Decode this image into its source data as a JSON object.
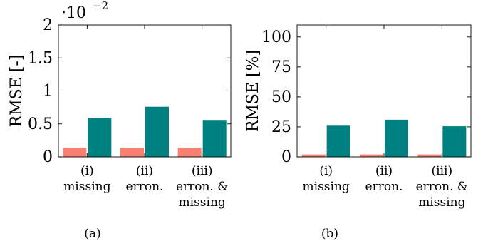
{
  "chart_data": [
    {
      "type": "bar",
      "panel_label": "(a)",
      "ylabel": "RMSE [-]",
      "exponent_label": "·10",
      "exponent_power": "−2",
      "ylim": [
        0,
        2
      ],
      "yticks": [
        0,
        0.5,
        1,
        1.5,
        2
      ],
      "ytick_labels": [
        "0",
        "0.5",
        "1",
        "1.5",
        "2"
      ],
      "categories": [
        [
          "(i)",
          "missing"
        ],
        [
          "(ii)",
          "erron."
        ],
        [
          "(iii)",
          "erron. &",
          "missing"
        ]
      ],
      "series": [
        {
          "color": "#fa8072",
          "values": [
            0.14,
            0.14,
            0.14
          ]
        },
        {
          "color": "#008080",
          "values": [
            0.59,
            0.76,
            0.56
          ]
        }
      ],
      "grid": false,
      "legend": "none"
    },
    {
      "type": "bar",
      "panel_label": "(b)",
      "ylabel": "RMSE [%]",
      "ylim": [
        0,
        110
      ],
      "yticks": [
        0,
        25,
        50,
        75,
        100
      ],
      "ytick_labels": [
        "0",
        "25",
        "50",
        "75",
        "100"
      ],
      "categories": [
        [
          "(i)",
          "missing"
        ],
        [
          "(ii)",
          "erron."
        ],
        [
          "(iii)",
          "erron. &",
          "missing"
        ]
      ],
      "series": [
        {
          "color": "#fa8072",
          "values": [
            2,
            2,
            2
          ]
        },
        {
          "color": "#008080",
          "values": [
            26,
            31,
            25.5
          ]
        }
      ],
      "grid": false,
      "legend": "none"
    }
  ]
}
